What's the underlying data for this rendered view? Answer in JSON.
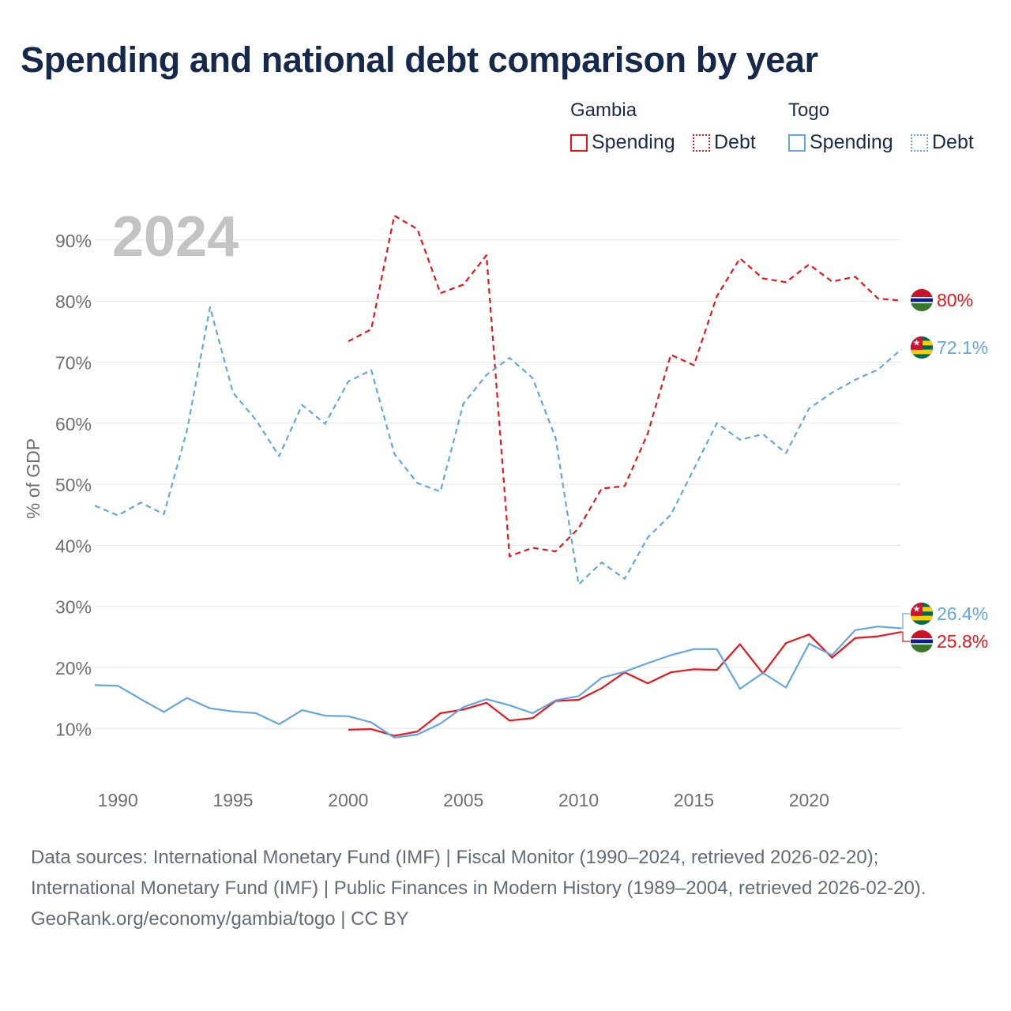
{
  "title": "Spending and national debt comparison by year",
  "legend": {
    "groups": [
      {
        "name": "Gambia",
        "items": [
          {
            "label": "Spending",
            "style": "solid"
          },
          {
            "label": "Debt",
            "style": "dotted"
          }
        ]
      },
      {
        "name": "Togo",
        "items": [
          {
            "label": "Spending",
            "style": "solid"
          },
          {
            "label": "Debt",
            "style": "dotted"
          }
        ]
      }
    ]
  },
  "colors": {
    "gambia": "#e8151b",
    "togo": "#63a6e2",
    "grid": "#e4e4e4",
    "axis_text": "#6f6f6f",
    "year_watermark": "#c3c3c3"
  },
  "chart_data": {
    "type": "line",
    "year_label": "2024",
    "ylabel": "% of GDP",
    "xlim": [
      1989,
      2024
    ],
    "ylim": [
      0,
      100
    ],
    "x_ticks": [
      1990,
      1995,
      2000,
      2005,
      2010,
      2015,
      2020
    ],
    "y_ticks": [
      10,
      20,
      30,
      40,
      50,
      60,
      70,
      80,
      90
    ],
    "y_tick_labels": [
      "10%",
      "20%",
      "30%",
      "40%",
      "50%",
      "60%",
      "70%",
      "80%",
      "90%"
    ],
    "series": [
      {
        "name": "Gambia Debt",
        "country": "Gambia",
        "metric": "Debt",
        "color": "#e8151b",
        "dash": "dashed",
        "end_label": "80%",
        "end_flag": "gambia-flag",
        "points": [
          [
            2000,
            73.4
          ],
          [
            2001,
            75.4
          ],
          [
            2002,
            94.0
          ],
          [
            2003,
            91.8
          ],
          [
            2004,
            81.3
          ],
          [
            2005,
            82.7
          ],
          [
            2006,
            87.5
          ],
          [
            2007,
            38.2
          ],
          [
            2008,
            39.6
          ],
          [
            2009,
            39.0
          ],
          [
            2010,
            42.8
          ],
          [
            2011,
            49.3
          ],
          [
            2012,
            49.7
          ],
          [
            2013,
            58.3
          ],
          [
            2014,
            71.2
          ],
          [
            2015,
            69.5
          ],
          [
            2016,
            80.8
          ],
          [
            2017,
            87.0
          ],
          [
            2018,
            83.7
          ],
          [
            2019,
            83.1
          ],
          [
            2020,
            86.0
          ],
          [
            2021,
            83.2
          ],
          [
            2022,
            84.0
          ],
          [
            2023,
            80.4
          ],
          [
            2024,
            80.1
          ]
        ]
      },
      {
        "name": "Togo Debt",
        "country": "Togo",
        "metric": "Debt",
        "color": "#63a6e2",
        "dash": "dashed",
        "end_label": "72.1%",
        "end_flag": "togo-flag",
        "points": [
          [
            1989,
            46.5
          ],
          [
            1990,
            44.9
          ],
          [
            1991,
            47.0
          ],
          [
            1992,
            45.1
          ],
          [
            1993,
            58.8
          ],
          [
            1994,
            79.0
          ],
          [
            1995,
            65.0
          ],
          [
            1996,
            60.5
          ],
          [
            1997,
            54.6
          ],
          [
            1998,
            63.0
          ],
          [
            1999,
            59.9
          ],
          [
            2000,
            66.8
          ],
          [
            2001,
            68.7
          ],
          [
            2002,
            55.0
          ],
          [
            2003,
            50.2
          ],
          [
            2004,
            48.8
          ],
          [
            2005,
            63.2
          ],
          [
            2006,
            67.9
          ],
          [
            2007,
            70.7
          ],
          [
            2008,
            67.4
          ],
          [
            2009,
            57.6
          ],
          [
            2010,
            33.6
          ],
          [
            2011,
            37.2
          ],
          [
            2012,
            34.5
          ],
          [
            2013,
            41.3
          ],
          [
            2014,
            45.0
          ],
          [
            2015,
            52.5
          ],
          [
            2016,
            60.0
          ],
          [
            2017,
            57.3
          ],
          [
            2018,
            58.2
          ],
          [
            2019,
            55.1
          ],
          [
            2020,
            62.4
          ],
          [
            2021,
            65.0
          ],
          [
            2022,
            67.1
          ],
          [
            2023,
            68.8
          ],
          [
            2024,
            72.1
          ]
        ]
      },
      {
        "name": "Gambia Spending",
        "country": "Gambia",
        "metric": "Spending",
        "color": "#e8151b",
        "dash": "solid",
        "end_label": "25.8%",
        "end_flag": "gambia-flag",
        "points": [
          [
            2000,
            9.8
          ],
          [
            2001,
            9.9
          ],
          [
            2002,
            8.8
          ],
          [
            2003,
            9.5
          ],
          [
            2004,
            12.5
          ],
          [
            2005,
            13.1
          ],
          [
            2006,
            14.2
          ],
          [
            2007,
            11.3
          ],
          [
            2008,
            11.7
          ],
          [
            2009,
            14.5
          ],
          [
            2010,
            14.7
          ],
          [
            2011,
            16.6
          ],
          [
            2012,
            19.2
          ],
          [
            2013,
            17.4
          ],
          [
            2014,
            19.2
          ],
          [
            2015,
            19.7
          ],
          [
            2016,
            19.6
          ],
          [
            2017,
            23.8
          ],
          [
            2018,
            19.0
          ],
          [
            2019,
            24.0
          ],
          [
            2020,
            25.4
          ],
          [
            2021,
            21.6
          ],
          [
            2022,
            24.8
          ],
          [
            2023,
            25.1
          ],
          [
            2024,
            25.8
          ]
        ]
      },
      {
        "name": "Togo Spending",
        "country": "Togo",
        "metric": "Spending",
        "color": "#63a6e2",
        "dash": "solid",
        "end_label": "26.4%",
        "end_flag": "togo-flag",
        "points": [
          [
            1989,
            17.1
          ],
          [
            1990,
            17.0
          ],
          [
            1991,
            14.8
          ],
          [
            1992,
            12.7
          ],
          [
            1993,
            15.0
          ],
          [
            1994,
            13.3
          ],
          [
            1995,
            12.8
          ],
          [
            1996,
            12.5
          ],
          [
            1997,
            10.7
          ],
          [
            1998,
            13.0
          ],
          [
            1999,
            12.1
          ],
          [
            2000,
            12.0
          ],
          [
            2001,
            11.0
          ],
          [
            2002,
            8.5
          ],
          [
            2003,
            9.0
          ],
          [
            2004,
            10.8
          ],
          [
            2005,
            13.5
          ],
          [
            2006,
            14.8
          ],
          [
            2007,
            13.8
          ],
          [
            2008,
            12.5
          ],
          [
            2009,
            14.6
          ],
          [
            2010,
            15.3
          ],
          [
            2011,
            18.3
          ],
          [
            2012,
            19.3
          ],
          [
            2013,
            20.7
          ],
          [
            2014,
            22.0
          ],
          [
            2015,
            23.0
          ],
          [
            2016,
            23.0
          ],
          [
            2017,
            16.5
          ],
          [
            2018,
            19.1
          ],
          [
            2019,
            16.7
          ],
          [
            2020,
            23.9
          ],
          [
            2021,
            22.0
          ],
          [
            2022,
            26.1
          ],
          [
            2023,
            26.7
          ],
          [
            2024,
            26.4
          ]
        ]
      }
    ]
  },
  "source": {
    "lines": [
      "Data sources: International Monetary Fund (IMF) | Fiscal Monitor (1990–2024, retrieved 2026-02-20); International Monetary Fund (IMF) | Public Finances in Modern History (1989–2004, retrieved 2026-02-20).",
      "GeoRank.org/economy/gambia/togo | CC BY"
    ]
  }
}
